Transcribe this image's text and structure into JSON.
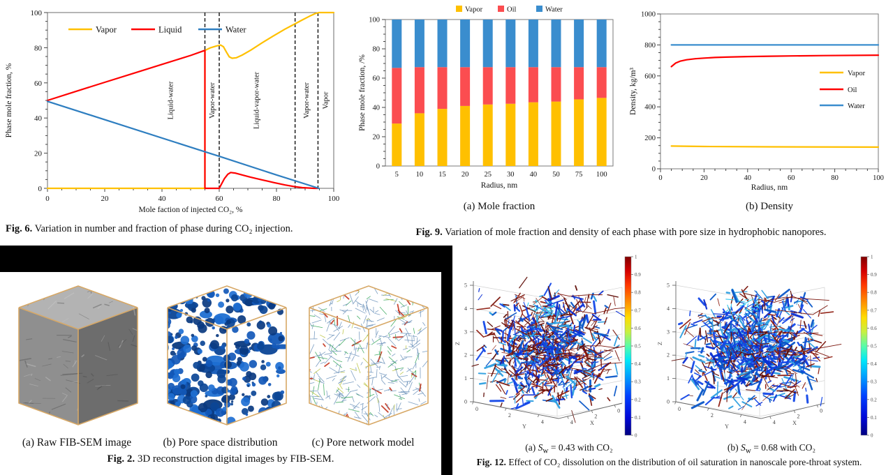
{
  "panels": {
    "fig6": {
      "caption": {
        "bold": "Fig. 6.",
        "text": " Variation in number and fraction of phase during CO₂ injection."
      }
    },
    "fig9": {
      "caption": {
        "bold": "Fig. 9.",
        "text": " Variation of mole fraction and density of each phase with pore size in hydrophobic nanopores."
      },
      "subcaption_a": "(a) Mole fraction",
      "subcaption_b": "(b) Density"
    },
    "fig2": {
      "caption": {
        "bold": "Fig. 2.",
        "text": " 3D reconstruction digital images by FIB-SEM."
      },
      "labels": [
        "(a) Raw FIB-SEM image",
        "(b) Pore space distribution",
        "(c) Pore network model"
      ],
      "cube_colors": {
        "edge": "#D7A866",
        "gray_top": "#b3b3b3",
        "gray_left": "#8f8f8f",
        "gray_right": "#6d6d6d",
        "pore_blues": [
          "#0b4596",
          "#1258b8",
          "#1e6fd2",
          "#0a3a80"
        ],
        "network_palette": [
          "#6e93bb",
          "#35a659",
          "#b9c23b",
          "#c3351f"
        ]
      }
    },
    "fig12": {
      "caption": {
        "bold": "Fig. 12.",
        "text": " Effect of CO₂ dissolution on the distribution of oil saturation in nanoscale pore-throat system."
      },
      "subcaption_a": {
        "p0": "(a) ",
        "p1": "S",
        "p2": "w",
        "p3": " = 0.43 with CO₂"
      },
      "subcaption_b": {
        "p0": "(b) ",
        "p1": "S",
        "p2": "w",
        "p3": " = 0.68 with CO₂"
      },
      "axes": {
        "z_label": "Z",
        "y_label": "Y",
        "x_label": "X",
        "z_ticks": [
          0,
          1,
          2,
          3,
          4,
          5
        ],
        "y_ticks": [
          0,
          2,
          4
        ],
        "x_ticks": [
          4,
          2,
          0
        ]
      },
      "colorbar": {
        "ticks": [
          "1",
          "0.9",
          "0.8",
          "0.7",
          "0.6",
          "0.5",
          "0.4",
          "0.3",
          "0.2",
          "0.1",
          "0"
        ]
      },
      "network_colors": {
        "reds": [
          "#7a140b",
          "#8e1c10",
          "#5f0d06"
        ],
        "blues": [
          "#0b2fd4",
          "#1448e8",
          "#0a57c8",
          "#2e9fe0"
        ],
        "cyan": "#35c8f0",
        "red_fraction_a": 0.52,
        "red_fraction_b": 0.33
      }
    }
  },
  "chart_data": [
    {
      "id": "fig6-phase-fraction",
      "type": "line",
      "xlabel": "Mole faction of injected CO₂, %",
      "ylabel": "Phase mole fraction, %",
      "xlim": [
        0,
        100
      ],
      "ylim": [
        0,
        100
      ],
      "xticks": [
        0,
        20,
        40,
        60,
        80,
        100
      ],
      "yticks": [
        0,
        20,
        40,
        60,
        80,
        100
      ],
      "legend_position": "top-left-inside",
      "grid": false,
      "series": [
        {
          "name": "Vapor",
          "color": "#FFC000",
          "points": [
            [
              0,
              0
            ],
            [
              55,
              0
            ],
            [
              55,
              78.5
            ],
            [
              57,
              80
            ],
            [
              59,
              81
            ],
            [
              60.5,
              81.5
            ],
            [
              61.5,
              80.5
            ],
            [
              62.5,
              77.5
            ],
            [
              63.5,
              74.8
            ],
            [
              64.5,
              74
            ],
            [
              66,
              74.3
            ],
            [
              68,
              75.8
            ],
            [
              71,
              78.6
            ],
            [
              75,
              82.8
            ],
            [
              79,
              86.8
            ],
            [
              83,
              90.6
            ],
            [
              86.5,
              93.6
            ],
            [
              89,
              95.8
            ],
            [
              91.5,
              97.9
            ],
            [
              93.5,
              99.4
            ],
            [
              94.8,
              100
            ],
            [
              100,
              100
            ]
          ]
        },
        {
          "name": "Liquid",
          "color": "#FF0000",
          "points": [
            [
              0,
              50
            ],
            [
              10,
              55.2
            ],
            [
              20,
              60.3
            ],
            [
              30,
              65.4
            ],
            [
              40,
              70.5
            ],
            [
              50,
              75.6
            ],
            [
              55,
              78.5
            ],
            [
              55,
              0
            ],
            [
              60,
              0
            ],
            [
              60.8,
              2.5
            ],
            [
              61.8,
              5.5
            ],
            [
              63,
              8
            ],
            [
              64,
              9
            ],
            [
              65.5,
              8.7
            ],
            [
              68,
              7.6
            ],
            [
              71,
              6.3
            ],
            [
              75,
              4.8
            ],
            [
              79,
              3.3
            ],
            [
              83,
              1.9
            ],
            [
              86.5,
              0.9
            ],
            [
              89,
              0.4
            ],
            [
              93,
              0
            ],
            [
              94.5,
              0
            ]
          ]
        },
        {
          "name": "Water",
          "color": "#2E7EC0",
          "points": [
            [
              0,
              49.5
            ],
            [
              55,
              20.8
            ],
            [
              60,
              18.2
            ],
            [
              80,
              7.6
            ],
            [
              94.8,
              0
            ]
          ]
        }
      ],
      "dashed_lines_x": [
        55,
        60,
        86.5,
        94.5
      ],
      "region_labels": [
        {
          "text": "Liquid-water",
          "x": 43
        },
        {
          "text": "Vapor-water",
          "x": 57.5
        },
        {
          "text": "Liquid-vapor-water",
          "x": 73
        },
        {
          "text": "Vapor-water",
          "x": 90.5
        },
        {
          "text": "Vapor",
          "x": 97.2
        }
      ]
    },
    {
      "id": "fig9a-mole-fraction",
      "type": "bar-stacked",
      "categories": [
        "5",
        "10",
        "15",
        "20",
        "25",
        "30",
        "40",
        "50",
        "75",
        "100"
      ],
      "xlabel": "Radius, nm",
      "ylabel": "Phase mole fraction, /%",
      "ylim": [
        0,
        100
      ],
      "yticks": [
        0,
        20,
        40,
        60,
        80,
        100
      ],
      "legend_position": "top-center",
      "series": [
        {
          "name": "Vapor",
          "color": "#FFC000",
          "values": [
            29,
            36,
            39,
            41,
            42,
            42.5,
            43.5,
            44,
            45.5,
            46.5
          ]
        },
        {
          "name": "Oil",
          "color": "#FB4D50",
          "values": [
            38,
            31.5,
            28.5,
            26.5,
            25.5,
            25,
            24,
            23.5,
            22,
            21
          ]
        },
        {
          "name": "Water",
          "color": "#3A8DCE",
          "values": [
            33,
            32.5,
            32.5,
            32.5,
            32.5,
            32.5,
            32.5,
            32.5,
            32.5,
            32.5
          ]
        }
      ]
    },
    {
      "id": "fig9b-density",
      "type": "line",
      "xlabel": "Radius, nm",
      "ylabel": "Density, kg/m³",
      "xlim": [
        0,
        100
      ],
      "ylim": [
        0,
        1000
      ],
      "xticks": [
        0,
        20,
        40,
        60,
        80,
        100
      ],
      "yticks": [
        0,
        200,
        400,
        600,
        800,
        1000
      ],
      "legend_position": "right-inside",
      "series": [
        {
          "name": "Vapor",
          "color": "#FFC000",
          "points": [
            [
              5,
              147
            ],
            [
              20,
              144
            ],
            [
              50,
              142
            ],
            [
              100,
              140
            ]
          ]
        },
        {
          "name": "Oil",
          "color": "#FF0000",
          "points": [
            [
              5,
              660
            ],
            [
              7,
              683
            ],
            [
              9,
              695
            ],
            [
              12,
              704
            ],
            [
              16,
              711
            ],
            [
              20,
              715
            ],
            [
              25,
              719
            ],
            [
              30,
              721
            ],
            [
              40,
              725
            ],
            [
              50,
              727
            ],
            [
              60,
              729
            ],
            [
              75,
              731
            ],
            [
              100,
              734
            ]
          ]
        },
        {
          "name": "Water",
          "color": "#3A8DCE",
          "points": [
            [
              5,
              800
            ],
            [
              100,
              800
            ]
          ]
        }
      ]
    }
  ]
}
